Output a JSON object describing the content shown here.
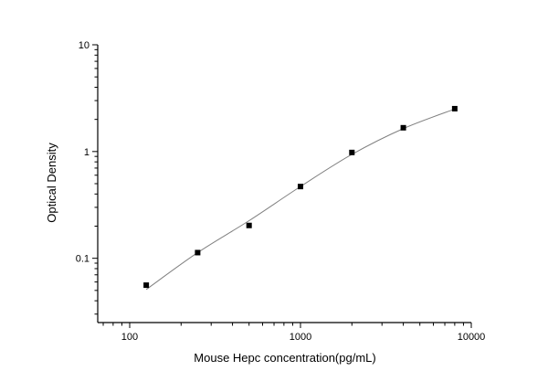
{
  "chart_data": {
    "type": "scatter",
    "title": "",
    "xlabel": "Mouse Hepc concentration(pg/mL)",
    "ylabel": "Optical Density",
    "xscale": "log",
    "yscale": "log",
    "xlim": [
      65,
      10000
    ],
    "ylim": [
      0.025,
      10
    ],
    "xticks": [
      100,
      1000,
      10000
    ],
    "xtick_labels": [
      "100",
      "1000",
      "10000"
    ],
    "yticks": [
      0.1,
      1,
      10
    ],
    "ytick_labels": [
      "0.1",
      "1",
      "10"
    ],
    "grid": false,
    "legend": "none",
    "series": [
      {
        "x": [
          125,
          250,
          500,
          1000,
          2000,
          4000,
          8000
        ],
        "y": [
          0.056,
          0.113,
          0.203,
          0.47,
          0.98,
          1.67,
          2.52
        ],
        "marker": "square",
        "color": "#000000"
      }
    ],
    "fit_curve": {
      "x": [
        125,
        250,
        500,
        1000,
        2000,
        4000,
        8000
      ],
      "y": [
        0.051,
        0.113,
        0.225,
        0.47,
        0.94,
        1.64,
        2.5
      ],
      "color": "#808080"
    }
  }
}
